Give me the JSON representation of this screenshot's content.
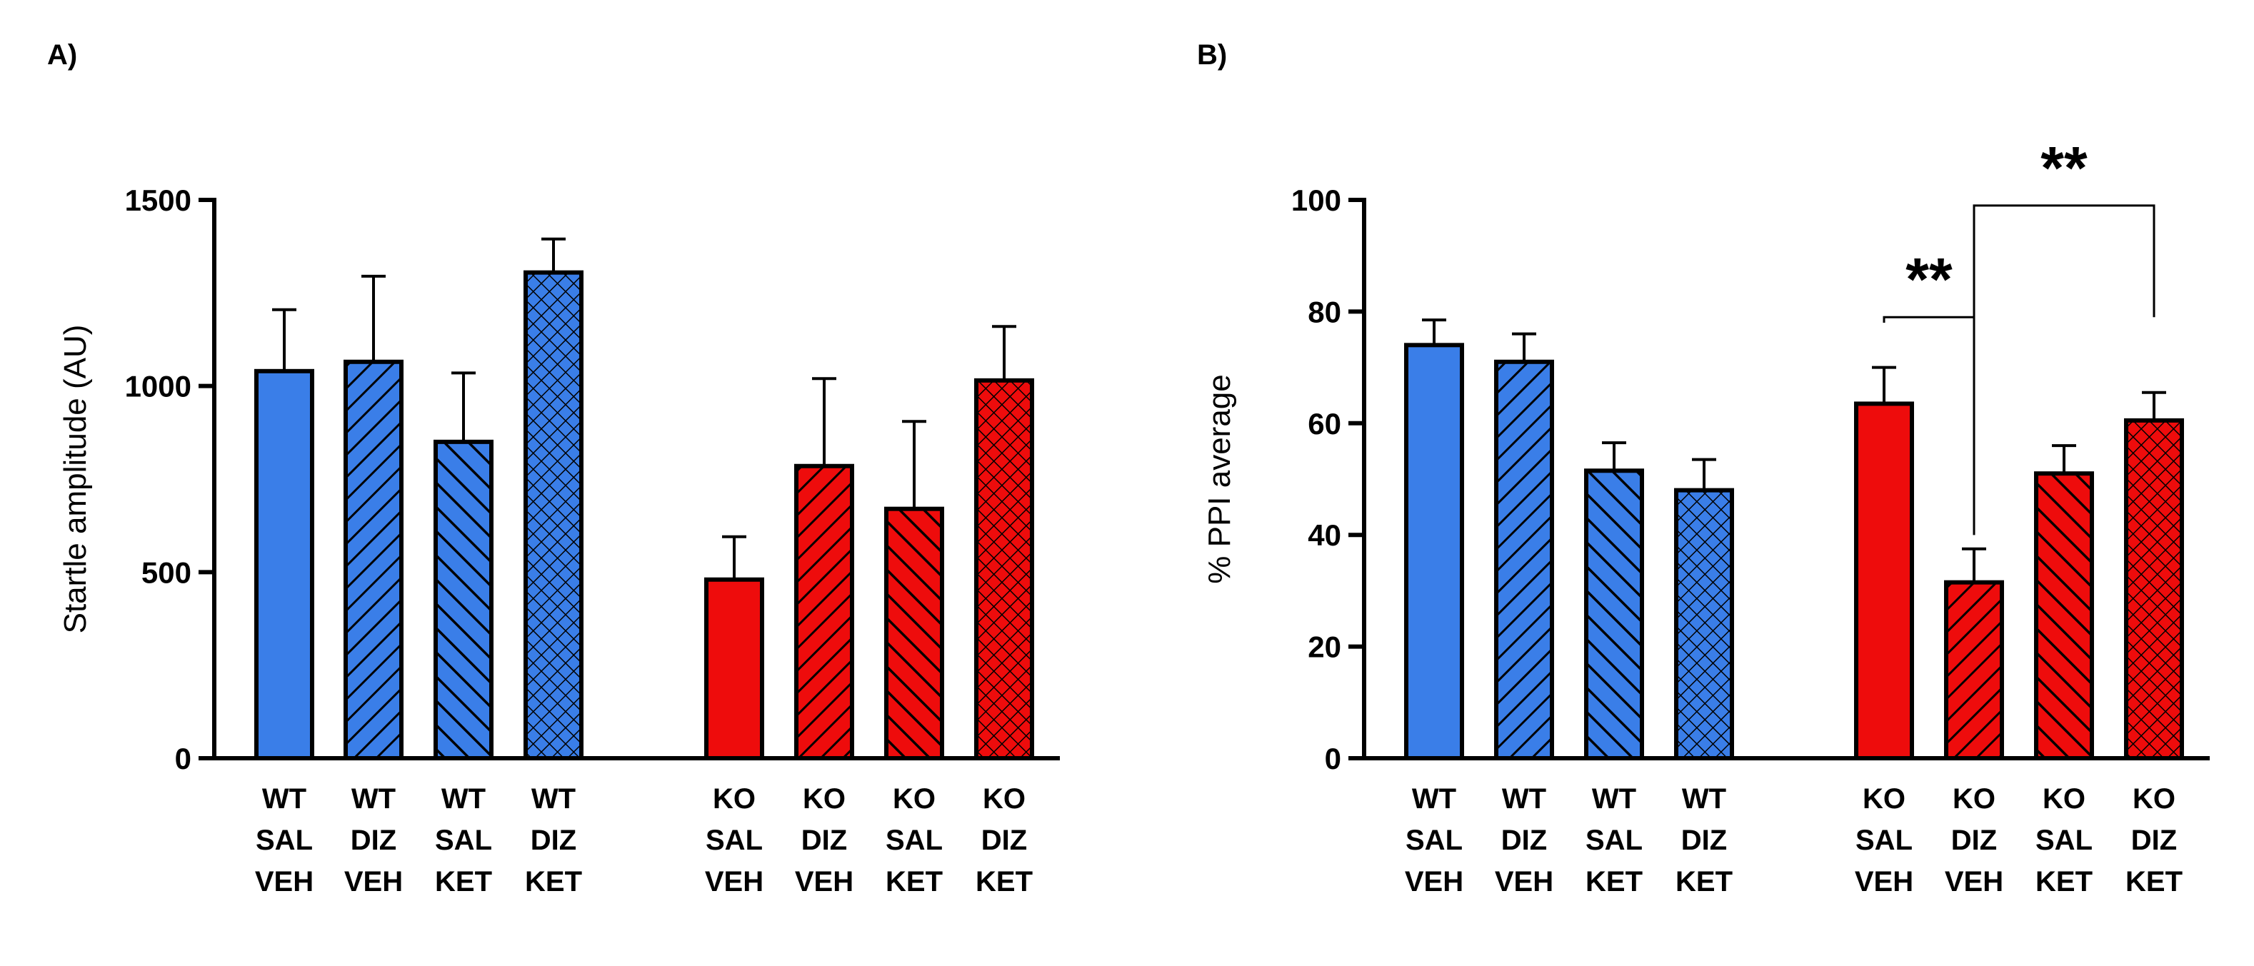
{
  "figure": {
    "label_a": "A)",
    "label_b": "B)"
  },
  "colors": {
    "wt": "#3a7ee8",
    "ko": "#ee0c0c",
    "edge": "#000000"
  },
  "chart_data": [
    {
      "type": "bar",
      "panel": "A)",
      "title": "",
      "xlabel": "",
      "ylabel": "Startle amplitude (AU)",
      "ylim": [
        0,
        1500
      ],
      "yticks": [
        0,
        500,
        1000,
        1500
      ],
      "grid": false,
      "categories": [
        [
          "WT",
          "SAL",
          "VEH"
        ],
        [
          "WT",
          "DIZ",
          "VEH"
        ],
        [
          "WT",
          "SAL",
          "KET"
        ],
        [
          "WT",
          "DIZ",
          "KET"
        ],
        [
          "KO",
          "SAL",
          "VEH"
        ],
        [
          "KO",
          "DIZ",
          "VEH"
        ],
        [
          "KO",
          "SAL",
          "KET"
        ],
        [
          "KO",
          "DIZ",
          "KET"
        ]
      ],
      "values": [
        1040,
        1065,
        850,
        1305,
        480,
        785,
        670,
        1015
      ],
      "errors": [
        165,
        230,
        185,
        90,
        115,
        235,
        235,
        145
      ],
      "patterns": [
        "solid",
        "diag",
        "anti",
        "cross",
        "solid",
        "diag",
        "anti",
        "cross"
      ],
      "groups": [
        "wt",
        "wt",
        "wt",
        "wt",
        "ko",
        "ko",
        "ko",
        "ko"
      ],
      "annotations": []
    },
    {
      "type": "bar",
      "panel": "B)",
      "title": "",
      "xlabel": "",
      "ylabel": "% PPI average",
      "ylim": [
        0,
        100
      ],
      "yticks": [
        0,
        20,
        40,
        60,
        80,
        100
      ],
      "grid": false,
      "categories": [
        [
          "WT",
          "SAL",
          "VEH"
        ],
        [
          "WT",
          "DIZ",
          "VEH"
        ],
        [
          "WT",
          "SAL",
          "KET"
        ],
        [
          "WT",
          "DIZ",
          "KET"
        ],
        [
          "KO",
          "SAL",
          "VEH"
        ],
        [
          "KO",
          "DIZ",
          "VEH"
        ],
        [
          "KO",
          "SAL",
          "KET"
        ],
        [
          "KO",
          "DIZ",
          "KET"
        ]
      ],
      "values": [
        74,
        71,
        51.5,
        48,
        63.5,
        31.5,
        51,
        60.5
      ],
      "errors": [
        4.5,
        5,
        5,
        5.5,
        6.5,
        6,
        5,
        5
      ],
      "patterns": [
        "solid",
        "diag",
        "anti",
        "cross",
        "solid",
        "diag",
        "anti",
        "cross"
      ],
      "groups": [
        "wt",
        "wt",
        "wt",
        "wt",
        "ko",
        "ko",
        "ko",
        "ko"
      ],
      "annotations": [
        {
          "text": "**",
          "from": 4,
          "to": 5,
          "y": 79,
          "from_end": 78,
          "to_end": 40
        },
        {
          "text": "**",
          "from": 5,
          "to": 7,
          "y": 99,
          "from_end": 40,
          "to_end": 79
        }
      ]
    }
  ]
}
